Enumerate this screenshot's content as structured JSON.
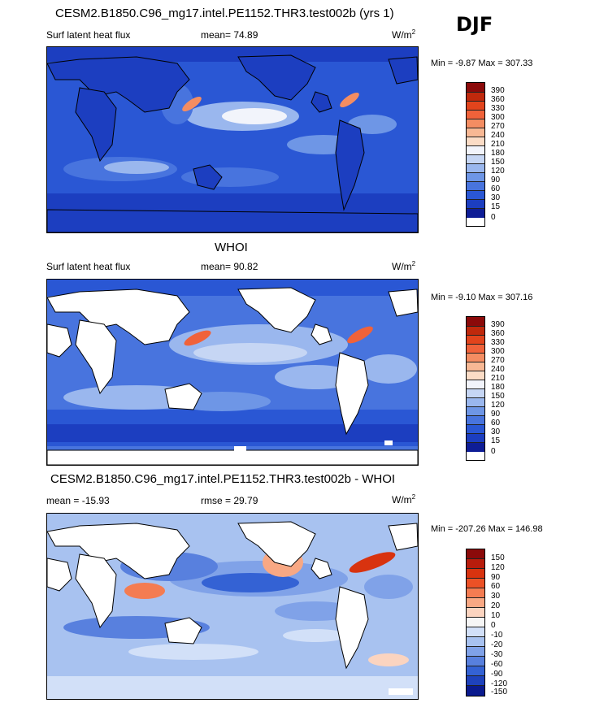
{
  "season": "DJF",
  "panels": [
    {
      "title": "CESM2.B1850.C96_mg17.intel.PE1152.THR3.test002b (yrs 1)",
      "left_label": "Surf latent heat flux",
      "stat_label": "mean=  74.89",
      "units": "W/m",
      "units_sup": "2",
      "range": "Min =  -9.87 Max = 307.33",
      "colorbar_levels": [
        "390",
        "360",
        "330",
        "300",
        "270",
        "240",
        "210",
        "180",
        "150",
        "120",
        "90",
        "60",
        "30",
        "15",
        "0"
      ],
      "colorbar_colors": [
        "#8b0a0a",
        "#c0290c",
        "#e2441c",
        "#f0623a",
        "#f48d62",
        "#f8b894",
        "#fbdcc6",
        "#f2f4fb",
        "#c6d6f4",
        "#9ab7ee",
        "#6e96e6",
        "#4874de",
        "#2a57d4",
        "#1c3ec0",
        "#0e1d96"
      ]
    },
    {
      "title": "WHOI",
      "left_label": "Surf latent heat flux",
      "stat_label": "mean=  90.82",
      "units": "W/m",
      "units_sup": "2",
      "range": "Min =  -9.10 Max = 307.16",
      "colorbar_levels": [
        "390",
        "360",
        "330",
        "300",
        "270",
        "240",
        "210",
        "180",
        "150",
        "120",
        "90",
        "60",
        "30",
        "15",
        "0"
      ],
      "colorbar_colors": [
        "#8b0a0a",
        "#c0290c",
        "#e2441c",
        "#f0623a",
        "#f48d62",
        "#f8b894",
        "#fbdcc6",
        "#f2f4fb",
        "#c6d6f4",
        "#9ab7ee",
        "#6e96e6",
        "#4874de",
        "#2a57d4",
        "#1c3ec0",
        "#0e1d96"
      ]
    },
    {
      "title": "CESM2.B1850.C96_mg17.intel.PE1152.THR3.test002b - WHOI",
      "left_label": "mean = -15.93",
      "stat_label": "rmse =  29.79",
      "units": "W/m",
      "units_sup": "2",
      "range": "Min = -207.26 Max = 146.98",
      "colorbar_levels": [
        "150",
        "120",
        "90",
        "60",
        "30",
        "20",
        "10",
        "0",
        "-10",
        "-20",
        "-30",
        "-60",
        "-90",
        "-120",
        "-150"
      ],
      "colorbar_colors": [
        "#8b0a0a",
        "#b81c0c",
        "#d8330f",
        "#ec5126",
        "#f47c52",
        "#f8a884",
        "#fbd4c0",
        "#f6f6f6",
        "#d2e0f8",
        "#a8c2f0",
        "#80a2e8",
        "#5880de",
        "#3462d4",
        "#1e42bc",
        "#0a1a8e"
      ]
    }
  ]
}
